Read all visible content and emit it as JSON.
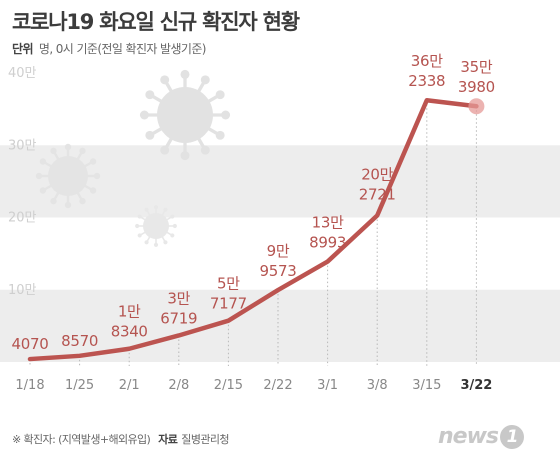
{
  "header": {
    "title": "코로나19 화요일 신규 확진자 현황",
    "unit_label": "단위",
    "unit_text": "명, 0시 기준(전일 확진자 발생기준)"
  },
  "footer": {
    "note": "※ 확진자: (지역발생+해외유입)",
    "source_label": "자료",
    "source": "질병관리청"
  },
  "logo": {
    "text": "news",
    "mark": "1"
  },
  "colors": {
    "line": "#bc5450",
    "label": "#b55450",
    "band": "#ededed",
    "tick": "#888888"
  },
  "icons": [
    "virus-icon"
  ],
  "chart_data": {
    "type": "line",
    "title": "코로나19 화요일 신규 확진자 현황",
    "xlabel": "",
    "ylabel": "",
    "categories": [
      "1/18",
      "1/25",
      "2/1",
      "2/8",
      "2/15",
      "2/22",
      "3/1",
      "3/8",
      "3/15",
      "3/22"
    ],
    "values": [
      4070,
      8570,
      18340,
      36719,
      57177,
      99573,
      138993,
      202721,
      362338,
      353980
    ],
    "value_labels": [
      [
        "4070"
      ],
      [
        "8570"
      ],
      [
        "1만",
        "8340"
      ],
      [
        "3만",
        "6719"
      ],
      [
        "5만",
        "7177"
      ],
      [
        "9만",
        "9573"
      ],
      [
        "13만",
        "8993"
      ],
      [
        "20만",
        "2721"
      ],
      [
        "36만",
        "2338"
      ],
      [
        "35만",
        "3980"
      ]
    ],
    "yticks": [
      {
        "value": 100000,
        "label": "10만"
      },
      {
        "value": 200000,
        "label": "20만"
      },
      {
        "value": 300000,
        "label": "30만"
      },
      {
        "value": 400000,
        "label": "40만"
      }
    ],
    "ylim": [
      0,
      400000
    ],
    "highlight_last": true
  }
}
